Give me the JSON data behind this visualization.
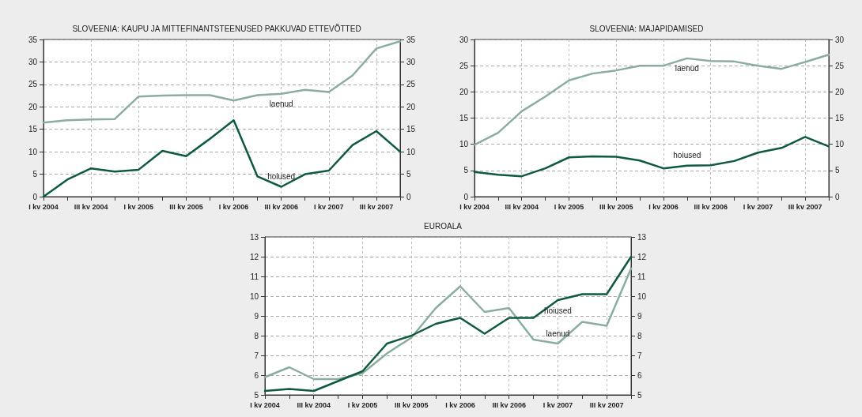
{
  "chart_data": [
    {
      "type": "line",
      "title": "SLOVEENIA: KAUPU JA MITTEFINANTSTEENUSED PAKKUVAD ETTEVÕTTED",
      "categories": [
        "I kv 2004",
        null,
        "III kv 2004",
        null,
        "I kv 2005",
        null,
        "III kv 2005",
        null,
        "I kv 2006",
        null,
        "III kv 2006",
        null,
        "I kv 2007",
        null,
        "III kv 2007",
        null
      ],
      "series": [
        {
          "name": "laenud",
          "color": "#8aae9e",
          "values": [
            16.5,
            17.0,
            17.2,
            17.3,
            22.3,
            22.5,
            22.6,
            22.6,
            21.4,
            22.6,
            22.9,
            23.8,
            23.3,
            27.0,
            33.0,
            34.6
          ]
        },
        {
          "name": "hoiused",
          "color": "#0e5a3c",
          "values": [
            0,
            3.8,
            6.3,
            5.6,
            6.0,
            10.2,
            9.0,
            12.9,
            17.0,
            4.5,
            2.2,
            5.0,
            5.8,
            11.5,
            14.6,
            10.0
          ]
        }
      ],
      "ylim": [
        0,
        35
      ],
      "yticks": [
        0,
        5,
        10,
        15,
        20,
        25,
        30,
        35
      ],
      "y2lim": [
        0,
        35
      ],
      "y2ticks": [
        0,
        5,
        10,
        15,
        20,
        25,
        30,
        35
      ],
      "grid": true,
      "legend": false,
      "marker": "none",
      "line_style": "solid"
    },
    {
      "type": "line",
      "title": "SLOVEENIA: MAJAPIDAMISED",
      "categories": [
        "I kv 2004",
        null,
        "III kv 2004",
        null,
        "I kv 2005",
        null,
        "III kv 2005",
        null,
        "I kv 2006",
        null,
        "III kv 2006",
        null,
        "I kv 2007",
        null,
        "III kv 2007",
        null
      ],
      "series": [
        {
          "name": "laenud",
          "color": "#8aae9e",
          "values": [
            9.9,
            12.2,
            16.3,
            19.1,
            22.2,
            23.5,
            24.1,
            25.0,
            25.0,
            26.4,
            25.9,
            25.8,
            25.0,
            24.4,
            25.7,
            27.1
          ]
        },
        {
          "name": "hoiused",
          "color": "#0e5a3c",
          "values": [
            4.7,
            4.2,
            3.9,
            5.4,
            7.5,
            7.7,
            7.6,
            6.9,
            5.4,
            5.9,
            6.0,
            6.8,
            8.4,
            9.3,
            11.4,
            9.6
          ]
        }
      ],
      "ylim": [
        0,
        30
      ],
      "yticks": [
        0,
        5,
        10,
        15,
        20,
        25,
        30
      ],
      "y2lim": [
        0,
        30
      ],
      "y2ticks": [
        0,
        5,
        10,
        15,
        20,
        25,
        30
      ],
      "grid": true,
      "legend": false,
      "marker": "none",
      "line_style": "solid"
    },
    {
      "type": "line",
      "title": "EUROALA",
      "categories": [
        "I kv 2004",
        null,
        "III kv 2004",
        null,
        "I kv 2005",
        null,
        "III kv 2005",
        null,
        "I kv 2006",
        null,
        "III kv 2006",
        null,
        "I kv 2007",
        null,
        "III kv 2007",
        null
      ],
      "series": [
        {
          "name": "laenud",
          "color": "#8aae9e",
          "values": [
            5.9,
            6.4,
            5.8,
            5.8,
            6.1,
            7.1,
            7.9,
            9.4,
            10.5,
            9.2,
            9.4,
            7.8,
            7.6,
            8.7,
            8.5,
            11.4
          ]
        },
        {
          "name": "hoiused",
          "color": "#0e5a3c",
          "values": [
            5.2,
            5.3,
            5.2,
            5.7,
            6.2,
            7.6,
            8.0,
            8.6,
            8.9,
            8.1,
            8.9,
            8.9,
            9.8,
            10.1,
            10.1,
            12.0
          ]
        }
      ],
      "ylim": [
        5,
        13
      ],
      "yticks": [
        5,
        6,
        7,
        8,
        9,
        10,
        11,
        12,
        13
      ],
      "y2lim": [
        5,
        13
      ],
      "y2ticks": [
        5,
        6,
        7,
        8,
        9,
        10,
        11,
        12,
        13
      ],
      "grid": true,
      "legend": false,
      "marker": "none",
      "line_style": "solid"
    }
  ]
}
